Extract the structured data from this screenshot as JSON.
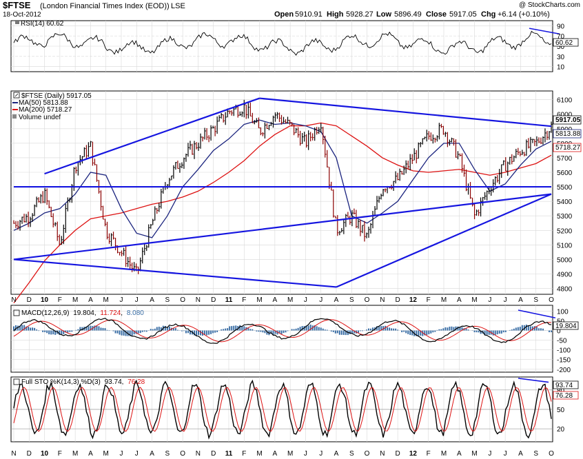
{
  "header": {
    "symbol": "$FTSE",
    "name": "(London Financial Times Index (EOD))",
    "exchange": "LSE",
    "date": "18-Oct-2012",
    "watermark": "@ StockCharts.com",
    "open_label": "Open",
    "open": "5910.91",
    "high_label": "High",
    "high": "5928.27",
    "low_label": "Low",
    "low": "5896.49",
    "close_label": "Close",
    "close": "5917.05",
    "chg_label": "Chg",
    "chg": "+6.14 (+0.10%)"
  },
  "colors": {
    "price_bar_up": "#000000",
    "price_bar_down": "#8b0000",
    "ma50": "#1a237e",
    "ma200": "#dd1111",
    "trendline": "#1515e0",
    "macd_line": "#000000",
    "macd_signal": "#dd1111",
    "macd_histogram": "#3a6ea5",
    "sto_k": "#000000",
    "sto_d": "#dd1111",
    "grid": "#d8d8d8"
  },
  "x_axis": {
    "labels": [
      "N",
      "D",
      "10",
      "F",
      "M",
      "A",
      "M",
      "J",
      "J",
      "A",
      "S",
      "O",
      "N",
      "D",
      "11",
      "F",
      "M",
      "A",
      "M",
      "J",
      "J",
      "A",
      "S",
      "O",
      "N",
      "D",
      "12",
      "F",
      "M",
      "A",
      "M",
      "J",
      "J",
      "A",
      "S",
      "O"
    ],
    "bold_labels": [
      "10",
      "11",
      "12"
    ]
  },
  "rsi_panel": {
    "legend": "RSI(14) 60.62",
    "last_value": "60.62",
    "y_ticks": [
      "90",
      "70",
      "50",
      "30",
      "10"
    ],
    "overbought": 70,
    "oversold": 30,
    "ylim": [
      0,
      100
    ]
  },
  "price_panel": {
    "legend": {
      "title": "$FTSE (Daily) 5917.05",
      "ma50": "MA(50) 5813.88",
      "ma200": "MA(200) 5718.27",
      "volume": "Volume undef"
    },
    "y_ticks": [
      "6100",
      "6000",
      "5900",
      "5800",
      "5700",
      "5600",
      "5500",
      "5400",
      "5300",
      "5200",
      "5100",
      "5000",
      "4900",
      "4800"
    ],
    "value_tags": {
      "close": "5917.05",
      "ma50": "5813.88",
      "ma200": "5718.27"
    },
    "ylim": [
      4760,
      6160
    ]
  },
  "macd_panel": {
    "legend_prefix": "MACD(12,26,9)",
    "macd_value": "19.804",
    "signal_value": "11.724",
    "hist_value": "8.080",
    "y_ticks": [
      "100",
      "50",
      "0",
      "-50",
      "-100",
      "-150",
      "-200"
    ],
    "last_value": "19.804",
    "ylim": [
      -215,
      130
    ]
  },
  "sto_panel": {
    "legend_prefix": "Full STO %K(14,3) %D(3)",
    "k_value": "93.74",
    "d_value": "76.28",
    "y_ticks": [
      "80",
      "50",
      "20"
    ],
    "ylim": [
      0,
      100
    ]
  },
  "chart_data": {
    "type": "line",
    "title": "$FTSE (London Financial Times Index (EOD)) Daily",
    "x": [
      "N",
      "D",
      "10",
      "F",
      "M",
      "A",
      "M",
      "J",
      "J",
      "A",
      "S",
      "O",
      "N",
      "D",
      "11",
      "F",
      "M",
      "A",
      "M",
      "J",
      "J",
      "A",
      "S",
      "O",
      "N",
      "D",
      "12",
      "F",
      "M",
      "A",
      "M",
      "J",
      "J",
      "A",
      "S",
      "O"
    ],
    "series": [
      {
        "name": "$FTSE (Daily)",
        "values": [
          5250,
          5300,
          5450,
          5100,
          5650,
          5780,
          5200,
          5050,
          4900,
          5250,
          5550,
          5700,
          5800,
          5900,
          6020,
          6050,
          5880,
          6000,
          5920,
          5800,
          5950,
          5200,
          5300,
          5150,
          5500,
          5550,
          5700,
          5850,
          5900,
          5700,
          5300,
          5500,
          5650,
          5750,
          5800,
          5917
        ]
      },
      {
        "name": "MA(50)",
        "values": [
          5200,
          5250,
          5320,
          5350,
          5450,
          5600,
          5580,
          5350,
          5180,
          5150,
          5300,
          5500,
          5620,
          5750,
          5830,
          5930,
          5960,
          5930,
          5940,
          5920,
          5880,
          5700,
          5300,
          5250,
          5320,
          5400,
          5550,
          5700,
          5800,
          5800,
          5620,
          5470,
          5520,
          5650,
          5760,
          5814
        ]
      },
      {
        "name": "MA(200)",
        "values": [
          4700,
          4840,
          4990,
          5100,
          5200,
          5280,
          5300,
          5320,
          5350,
          5380,
          5400,
          5430,
          5470,
          5530,
          5600,
          5680,
          5780,
          5860,
          5920,
          5920,
          5940,
          5920,
          5850,
          5780,
          5700,
          5650,
          5610,
          5600,
          5610,
          5620,
          5600,
          5580,
          5600,
          5630,
          5660,
          5718
        ]
      }
    ],
    "trendlines": [
      {
        "start": [
          "N",
          5000
        ],
        "end": [
          "O",
          5450
        ]
      },
      {
        "start": [
          "N",
          5500
        ],
        "end": [
          "O",
          5500
        ]
      },
      {
        "start": [
          "10",
          5590
        ],
        "end": [
          "M",
          6110
        ]
      },
      {
        "start": [
          "M",
          6110
        ],
        "end": [
          "O",
          5917
        ]
      },
      {
        "start": [
          "N",
          5000
        ],
        "end": [
          "A",
          4810
        ]
      },
      {
        "start": [
          "A",
          4810
        ],
        "end": [
          "O",
          5450
        ]
      }
    ],
    "ylim": [
      4760,
      6160
    ],
    "ylabel": "",
    "xlabel": "",
    "grid": true,
    "legend_position": "top-left"
  }
}
